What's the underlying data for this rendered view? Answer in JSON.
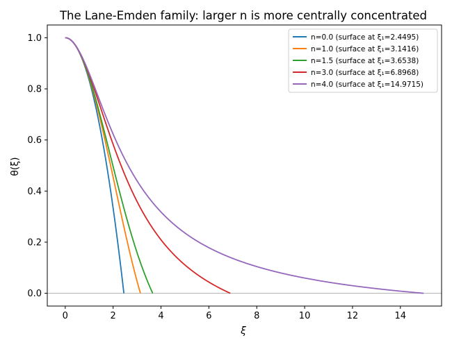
{
  "chart_data": {
    "type": "line",
    "title": "The Lane-Emden family: larger n is more centrally concentrated",
    "xlabel": "ξ",
    "ylabel": "θ(ξ)",
    "xlim": [
      -0.75,
      15.72
    ],
    "ylim": [
      -0.05,
      1.05
    ],
    "xticks": [
      0,
      2,
      4,
      6,
      8,
      10,
      12,
      14
    ],
    "yticks": [
      0.0,
      0.2,
      0.4,
      0.6,
      0.8,
      1.0
    ],
    "xtick_labels": [
      "0",
      "2",
      "4",
      "6",
      "8",
      "10",
      "12",
      "14"
    ],
    "ytick_labels": [
      "0.0",
      "0.2",
      "0.4",
      "0.6",
      "0.8",
      "1.0"
    ],
    "grid": false,
    "legend_position": "top-right",
    "reference_line_y": 0,
    "series": [
      {
        "name": "n=0.0 (surface at ξ₁=2.4495)",
        "n": 0.0,
        "xi1": 2.4495,
        "color": "#1f77b4"
      },
      {
        "name": "n=1.0 (surface at ξ₁=3.1416)",
        "n": 1.0,
        "xi1": 3.1416,
        "color": "#ff7f0e"
      },
      {
        "name": "n=1.5 (surface at ξ₁=3.6538)",
        "n": 1.5,
        "xi1": 3.6538,
        "color": "#2ca02c"
      },
      {
        "name": "n=3.0 (surface at ξ₁=6.8968)",
        "n": 3.0,
        "xi1": 6.8968,
        "color": "#d62728"
      },
      {
        "name": "n=4.0 (surface at ξ₁=14.9715)",
        "n": 4.0,
        "xi1": 14.9715,
        "color": "#9467bd"
      }
    ]
  }
}
